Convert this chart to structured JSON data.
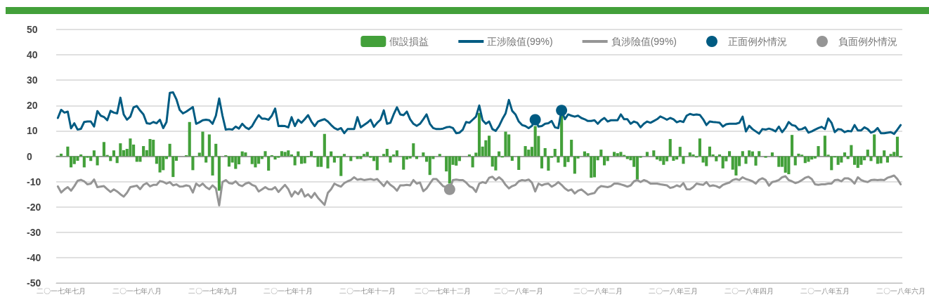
{
  "chart_data": {
    "type": "bar",
    "categories": [
      null,
      "二〇一七年七月",
      null,
      null,
      null,
      null,
      null,
      null,
      null,
      null,
      null,
      null,
      null,
      null,
      null,
      null,
      null,
      null,
      null,
      null,
      null,
      null,
      null,
      null,
      "二〇一七年八月",
      null,
      null,
      null,
      null,
      null,
      null,
      null,
      null,
      null,
      null,
      null,
      null,
      null,
      null,
      null,
      null,
      null,
      null,
      null,
      null,
      null,
      null,
      "二〇一七年九月",
      null,
      null,
      null,
      null,
      null,
      null,
      null,
      null,
      null,
      null,
      null,
      null,
      null,
      null,
      null,
      null,
      null,
      null,
      null,
      null,
      null,
      null,
      "二〇一七年十月",
      null,
      null,
      null,
      null,
      null,
      null,
      null,
      null,
      null,
      null,
      null,
      null,
      null,
      null,
      null,
      null,
      null,
      null,
      null,
      null,
      null,
      null,
      null,
      "二〇一七年十一月",
      null,
      null,
      null,
      null,
      null,
      null,
      null,
      null,
      null,
      null,
      null,
      null,
      null,
      null,
      null,
      null,
      null,
      null,
      null,
      null,
      null,
      null,
      "二〇一七年十二月",
      null,
      null,
      null,
      null,
      null,
      null,
      null,
      null,
      null,
      null,
      null,
      null,
      null,
      null,
      null,
      null,
      null,
      null,
      null,
      null,
      null,
      null,
      "二〇一八年一月",
      null,
      null,
      null,
      null,
      null,
      null,
      null,
      null,
      null,
      null,
      null,
      null,
      null,
      null,
      null,
      null,
      null,
      null,
      null,
      null,
      null,
      null,
      null,
      "二〇一八年二月",
      null,
      null,
      null,
      null,
      null,
      null,
      null,
      null,
      null,
      null,
      null,
      null,
      null,
      null,
      null,
      null,
      null,
      null,
      null,
      null,
      null,
      null,
      "二〇一八年三月",
      null,
      null,
      null,
      null,
      null,
      null,
      null,
      null,
      null,
      null,
      null,
      null,
      null,
      null,
      null,
      null,
      null,
      null,
      null,
      null,
      null,
      null,
      "二〇一八年四月",
      null,
      null,
      null,
      null,
      null,
      null,
      null,
      null,
      null,
      null,
      null,
      null,
      null,
      null,
      null,
      null,
      null,
      null,
      null,
      null,
      null,
      null,
      "二〇一八年五月",
      null,
      null,
      null,
      null,
      null,
      null,
      null,
      null,
      null,
      null,
      null,
      null,
      null,
      null,
      null,
      null,
      null,
      null,
      null,
      null,
      null,
      null,
      "二〇一八年六月"
    ],
    "series": [
      {
        "name": "假設損益",
        "color": "#43a03a",
        "values": [
          0.2,
          1.0,
          0.1,
          3.8,
          -4.4,
          -3.1,
          -1.8,
          0.7,
          -4.4,
          -0.6,
          -1.9,
          2.3,
          -3.6,
          0.1,
          5.6,
          0.5,
          -1.9,
          2.3,
          -2.7,
          5.1,
          2.4,
          2.9,
          7.0,
          4.6,
          -2.2,
          -2.2,
          4.0,
          2.4,
          6.8,
          6.5,
          -3.0,
          -6.4,
          -5.5,
          -1.1,
          4.9,
          -8.2,
          -1.8,
          0,
          null,
          0.4,
          13.5,
          -5.5,
          0.1,
          1.4,
          9.7,
          -2.5,
          8.6,
          -7.6,
          4.9,
          -13.6,
          null,
          0.4,
          -4.1,
          -2.5,
          -5.0,
          -3.2,
          1.9,
          1.5,
          0,
          -3.1,
          -4.4,
          -3.0,
          -1.1,
          2.0,
          -5.7,
          0.4,
          -1.3,
          -0.6,
          2.0,
          1.7,
          2.3,
          0.7,
          -3.6,
          1.9,
          -3.0,
          -2.8,
          -0.4,
          2.0,
          -0.5,
          -4.2,
          -4.2,
          8.8,
          -4.8,
          1.9,
          -2.5,
          -0.6,
          -7.8,
          0.9,
          0,
          -1.9,
          0,
          -1.1,
          -1.1,
          0.9,
          1.7,
          -0.6,
          -1.9,
          -5.5,
          0,
          0.9,
          2.9,
          -2.5,
          0.7,
          2.3,
          0,
          -5.3,
          -1.3,
          -0.9,
          5.1,
          -1.1,
          0,
          1.5,
          -2.2,
          -7.4,
          -1.1,
          0,
          0.9,
          0,
          -6.0,
          -10.8,
          -3.4,
          -3.7,
          -1.9,
          0,
          0,
          0.7,
          -4.4,
          1.4,
          17.1,
          3.8,
          6.3,
          8.1,
          -4.1,
          -5.6,
          1.9,
          -0.5,
          9.7,
          8.6,
          -1.8,
          0,
          -5.4,
          0,
          4.0,
          2.6,
          3.7,
          11.9,
          8.0,
          -4.8,
          3.2,
          -5.7,
          -0.6,
          2.9,
          -2.5,
          16.0,
          -4.2,
          -2.3,
          6.5,
          -6.9,
          -0.9,
          0,
          1.9,
          1.2,
          -8.5,
          -8.3,
          -1.6,
          2.6,
          -3.6,
          -1.9,
          0,
          1.7,
          1.2,
          1.7,
          0.5,
          -1.1,
          -1.6,
          -4.2,
          -9.2,
          -0.6,
          0,
          1.7,
          0,
          2.3,
          -1.3,
          -1.9,
          -3.4,
          -2.0,
          6.8,
          -1.8,
          -1.3,
          3.7,
          -3.0,
          0,
          1.5,
          0.7,
          -0.5,
          7.0,
          -2.5,
          -3.9,
          3.8,
          0.7,
          -2.0,
          0.7,
          -4.8,
          -2.0,
          2.0,
          -5.3,
          -7.6,
          -3.9,
          2.0,
          -3.0,
          2.3,
          1.9,
          -3.7,
          2.0,
          0,
          -0.6,
          0,
          1.5,
          0,
          -4.2,
          -4.2,
          -6.5,
          -7.1,
          8.4,
          -3.6,
          1.0,
          0.6,
          -2.7,
          -2.2,
          -1.3,
          -0.9,
          4.0,
          0,
          8.1,
          0.6,
          -5.5,
          -0.5,
          -3.4,
          -2.5,
          1.5,
          -1.1,
          4.4,
          -3.4,
          -4.6,
          -3.4,
          -1.6,
          2.6,
          -1.9,
          8.6,
          -3.0,
          -2.8,
          2.3,
          -2.5,
          0.9,
          1.7,
          7.7,
          -0.5
        ]
      },
      {
        "name": "正涉險值(99%)",
        "type": "line",
        "color": "#005b82",
        "values": [
          15.1,
          18.3,
          17.2,
          17.6,
          11.0,
          13.0,
          10.5,
          10.8,
          13.5,
          13.7,
          13.7,
          11.7,
          17.8,
          16.0,
          15.5,
          14.2,
          17.9,
          17.2,
          16.9,
          23.1,
          16.5,
          14.4,
          15.6,
          19.3,
          19.8,
          18.0,
          16.5,
          13.0,
          12.8,
          13.5,
          13.0,
          14.4,
          11.1,
          13.5,
          25.0,
          25.2,
          22.5,
          18.3,
          16.9,
          17.6,
          18.5,
          19.4,
          12.8,
          13.4,
          14.2,
          14.4,
          14.2,
          12.8,
          16.0,
          22.8,
          16.0,
          10.5,
          10.7,
          10.5,
          11.7,
          10.9,
          12.8,
          11.4,
          10.7,
          11.9,
          14.2,
          16.2,
          14.8,
          14.8,
          14.4,
          16.0,
          18.8,
          11.9,
          12.0,
          11.9,
          11.4,
          15.4,
          11.9,
          14.4,
          13.2,
          14.6,
          16.2,
          13.7,
          11.9,
          13.7,
          14.2,
          14.6,
          13.7,
          12.3,
          11.1,
          10.5,
          11.1,
          9.1,
          10.7,
          10.7,
          10.7,
          15.4,
          11.4,
          12.3,
          13.2,
          14.4,
          11.6,
          13.2,
          14.4,
          18.1,
          12.8,
          13.2,
          16.5,
          19.3,
          16.5,
          16.2,
          17.6,
          14.6,
          12.8,
          12.0,
          12.8,
          14.6,
          16.5,
          12.8,
          11.1,
          10.7,
          10.7,
          10.9,
          11.4,
          11.6,
          11.1,
          9.1,
          9.3,
          10.5,
          13.5,
          13.2,
          14.4,
          15.6,
          20.0,
          14.2,
          12.8,
          13.7,
          10.7,
          10.0,
          11.9,
          14.6,
          16.9,
          22.2,
          17.9,
          16.5,
          13.7,
          12.3,
          11.9,
          11.1,
          12.0,
          14.4,
          11.7,
          11.9,
          12.8,
          13.0,
          13.9,
          11.4,
          11.1,
          18.1,
          14.6,
          16.5,
          16.0,
          15.6,
          16.0,
          15.1,
          14.6,
          13.9,
          13.9,
          14.2,
          12.8,
          14.2,
          15.1,
          13.7,
          14.2,
          14.2,
          14.2,
          16.5,
          14.6,
          14.6,
          12.8,
          13.7,
          13.2,
          11.4,
          12.8,
          13.7,
          13.2,
          13.9,
          14.6,
          15.7,
          15.1,
          14.4,
          15.1,
          14.6,
          13.4,
          13.9,
          13.5,
          16.0,
          16.7,
          16.3,
          16.5,
          16.3,
          14.6,
          12.3,
          13.7,
          13.5,
          13.4,
          13.2,
          11.7,
          12.6,
          12.8,
          12.8,
          12.8,
          13.2,
          15.6,
          9.8,
          12.0,
          10.7,
          9.8,
          8.9,
          10.7,
          10.5,
          10.9,
          10.5,
          9.8,
          11.7,
          9.5,
          11.1,
          13.5,
          12.3,
          12.0,
          10.5,
          10.7,
          11.4,
          9.3,
          9.8,
          10.5,
          11.1,
          11.6,
          10.7,
          14.9,
          13.2,
          9.5,
          10.7,
          10.5,
          9.5,
          10.0,
          9.8,
          12.3,
          10.2,
          10.2,
          11.4,
          10.7,
          9.3,
          9.8,
          11.1,
          9.1,
          9.1,
          9.3,
          9.5,
          8.8,
          10.5,
          12.3
        ]
      },
      {
        "name": "負涉險值(99%)",
        "type": "line",
        "color": "#959595",
        "values": [
          -11.9,
          -14.3,
          -13.1,
          -12.2,
          -13.6,
          -11.8,
          -9.7,
          -9.3,
          -9.9,
          -11.1,
          -10.8,
          -9.2,
          -12.2,
          -12.0,
          -11.8,
          -13.0,
          -14.1,
          -13.1,
          -13.9,
          -15.0,
          -15.9,
          -14.4,
          -12.2,
          -11.9,
          -11.6,
          -13.0,
          -11.3,
          -10.6,
          -11.9,
          -11.3,
          -11.3,
          -9.8,
          -10.1,
          -10.8,
          -10.2,
          -11.5,
          -11.1,
          -12.0,
          -11.9,
          -11.5,
          -11.8,
          -14.3,
          -10.8,
          -11.8,
          -10.8,
          -12.2,
          -13.0,
          -11.5,
          -12.7,
          -19.4,
          -10.2,
          -9.4,
          -10.6,
          -10.8,
          -9.9,
          -11.3,
          -11.8,
          -10.8,
          -10.4,
          -11.3,
          -11.8,
          -13.9,
          -13.1,
          -12.2,
          -13.0,
          -13.1,
          -12.2,
          -14.1,
          -12.7,
          -11.3,
          -13.0,
          -15.9,
          -13.9,
          -15.0,
          -13.0,
          -15.9,
          -15.0,
          -16.4,
          -14.5,
          -16.4,
          -17.8,
          -19.2,
          -14.5,
          -13.0,
          -10.8,
          -11.5,
          -12.0,
          -10.6,
          -9.9,
          -9.4,
          -8.3,
          -9.3,
          -9.0,
          -9.4,
          -9.2,
          -9.0,
          -9.4,
          -9.0,
          -10.4,
          -11.8,
          -9.9,
          -11.3,
          -12.2,
          -13.6,
          -11.5,
          -11.5,
          -11.3,
          -11.5,
          -9.4,
          -10.8,
          -10.4,
          -13.8,
          -12.7,
          -10.8,
          -9.0,
          -9.0,
          -10.4,
          -11.8,
          -12.2,
          -13.1,
          -9.4,
          -9.2,
          -9.4,
          -9.4,
          -10.4,
          -11.8,
          -12.4,
          -14.1,
          -10.8,
          -10.2,
          -10.6,
          -8.5,
          -8.1,
          -9.4,
          -8.3,
          -9.4,
          -11.3,
          -12.7,
          -11.8,
          -11.3,
          -9.9,
          -9.4,
          -9.6,
          -9.2,
          -10.4,
          -13.9,
          -10.8,
          -11.5,
          -11.0,
          -10.8,
          -12.0,
          -11.3,
          -10.2,
          -11.3,
          -12.7,
          -13.6,
          -13.1,
          -14.7,
          -13.6,
          -13.1,
          -14.1,
          -15.2,
          -14.8,
          -14.5,
          -12.7,
          -11.8,
          -12.0,
          -12.2,
          -11.8,
          -10.8,
          -10.8,
          -11.1,
          -11.5,
          -12.0,
          -11.5,
          -9.9,
          -9.4,
          -10.2,
          -9.4,
          -9.9,
          -10.8,
          -10.8,
          -10.8,
          -11.1,
          -11.3,
          -11.5,
          -12.5,
          -12.2,
          -11.5,
          -12.0,
          -10.6,
          -13.0,
          -13.1,
          -12.2,
          -10.8,
          -11.1,
          -11.3,
          -10.2,
          -11.8,
          -11.5,
          -11.8,
          -12.4,
          -11.3,
          -10.8,
          -10.4,
          -9.4,
          -9.0,
          -9.4,
          -8.3,
          -9.0,
          -9.4,
          -9.9,
          -10.8,
          -9.3,
          -8.7,
          -9.4,
          -11.6,
          -10.2,
          -9.9,
          -9.4,
          -8.3,
          -7.9,
          -9.4,
          -9.9,
          -10.6,
          -10.2,
          -9.4,
          -8.5,
          -8.1,
          -9.0,
          -11.1,
          -11.3,
          -11.1,
          -11.1,
          -10.8,
          -10.8,
          -9.4,
          -9.3,
          -9.9,
          -8.7,
          -8.7,
          -9.4,
          -10.8,
          -8.3,
          -9.4,
          -9.9,
          -10.2,
          -9.4,
          -9.3,
          -9.4,
          -9.3,
          -9.4,
          -8.5,
          -8.1,
          -7.6,
          -9.0,
          -11.1
        ]
      },
      {
        "name": "正面例外情況",
        "type": "scatter",
        "marker": "circle",
        "color": "#005b82",
        "values": [
          null,
          null,
          null,
          null,
          null,
          null,
          null,
          null,
          null,
          null,
          null,
          null,
          null,
          null,
          null,
          null,
          null,
          null,
          null,
          null,
          null,
          null,
          null,
          null,
          null,
          null,
          null,
          null,
          null,
          null,
          null,
          null,
          null,
          null,
          null,
          null,
          null,
          null,
          null,
          null,
          null,
          null,
          null,
          null,
          null,
          null,
          null,
          null,
          null,
          null,
          null,
          null,
          null,
          null,
          null,
          null,
          null,
          null,
          null,
          null,
          null,
          null,
          null,
          null,
          null,
          null,
          null,
          null,
          null,
          null,
          null,
          null,
          null,
          null,
          null,
          null,
          null,
          null,
          null,
          null,
          null,
          null,
          null,
          null,
          null,
          null,
          null,
          null,
          null,
          null,
          null,
          null,
          null,
          null,
          null,
          null,
          null,
          null,
          null,
          null,
          null,
          null,
          null,
          null,
          null,
          null,
          null,
          null,
          null,
          null,
          null,
          null,
          null,
          null,
          null,
          null,
          null,
          null,
          null,
          null,
          null,
          null,
          null,
          null,
          null,
          null,
          null,
          null,
          null,
          null,
          null,
          null,
          null,
          null,
          null,
          null,
          null,
          null,
          null,
          null,
          null,
          null,
          null,
          null,
          null,
          14.4,
          null,
          null,
          null,
          null,
          null,
          null,
          null,
          18.1,
          null,
          null,
          null,
          null,
          null,
          null,
          null,
          null,
          null,
          null,
          null,
          null,
          null,
          null,
          null,
          null,
          null,
          null,
          null,
          null,
          null,
          null,
          null,
          null,
          null,
          null,
          null,
          null,
          null,
          null,
          null,
          null,
          null,
          null,
          null,
          null,
          null,
          null,
          null,
          null,
          null,
          null,
          null,
          null,
          null,
          null,
          null,
          null,
          null,
          null,
          null,
          null,
          null,
          null,
          null,
          null,
          null,
          null,
          null,
          null,
          null,
          null,
          null,
          null,
          null,
          null,
          null,
          null,
          null,
          null,
          null,
          null,
          null,
          null,
          null,
          null,
          null,
          null,
          null,
          null,
          null,
          null,
          null,
          null,
          null,
          null,
          null,
          null,
          null,
          null,
          null,
          null,
          null,
          null,
          null,
          null,
          null,
          null,
          null,
          null,
          null,
          null,
          null
        ]
      },
      {
        "name": "負面例外情況",
        "type": "scatter",
        "marker": "circle",
        "color": "#959595",
        "values": [
          null,
          null,
          null,
          null,
          null,
          null,
          null,
          null,
          null,
          null,
          null,
          null,
          null,
          null,
          null,
          null,
          null,
          null,
          null,
          null,
          null,
          null,
          null,
          null,
          null,
          null,
          null,
          null,
          null,
          null,
          null,
          null,
          null,
          null,
          null,
          null,
          null,
          null,
          null,
          null,
          null,
          null,
          null,
          null,
          null,
          null,
          null,
          null,
          null,
          null,
          null,
          null,
          null,
          null,
          null,
          null,
          null,
          null,
          null,
          null,
          null,
          null,
          null,
          null,
          null,
          null,
          null,
          null,
          null,
          null,
          null,
          null,
          null,
          null,
          null,
          null,
          null,
          null,
          null,
          null,
          null,
          null,
          null,
          null,
          null,
          null,
          null,
          null,
          null,
          null,
          null,
          null,
          null,
          null,
          null,
          null,
          null,
          null,
          null,
          null,
          null,
          null,
          null,
          null,
          null,
          null,
          null,
          null,
          null,
          null,
          null,
          null,
          null,
          null,
          null,
          null,
          null,
          null,
          null,
          -13.1,
          null,
          null,
          null,
          null,
          null,
          null,
          null,
          null,
          null,
          null,
          null,
          null,
          null,
          null,
          null,
          null,
          null,
          null,
          null,
          null,
          null,
          null,
          null,
          null,
          null,
          null,
          null,
          null,
          null,
          null,
          null,
          null,
          null,
          null,
          null,
          null,
          null,
          null,
          null,
          null,
          null,
          null,
          null,
          null,
          null,
          null,
          null,
          null,
          null,
          null,
          null,
          null,
          null,
          null,
          null,
          null,
          null,
          null,
          null,
          null,
          null,
          null,
          null,
          null,
          null,
          null,
          null,
          null,
          null,
          null,
          null,
          null,
          null,
          null,
          null,
          null,
          null,
          null,
          null,
          null,
          null,
          null,
          null,
          null,
          null,
          null,
          null,
          null,
          null,
          null,
          null,
          null,
          null,
          null,
          null,
          null,
          null,
          null,
          null,
          null,
          null,
          null,
          null,
          null,
          null,
          null,
          null,
          null,
          null,
          null,
          null,
          null,
          null,
          null,
          null,
          null,
          null,
          null,
          null,
          null,
          null,
          null,
          null,
          null,
          null,
          null,
          null,
          null,
          null,
          null,
          null,
          null,
          null,
          null,
          null,
          null,
          null
        ]
      }
    ],
    "ylim": [
      -50,
      50
    ],
    "yticks": [
      -50,
      -40,
      -30,
      -20,
      -10,
      0,
      10,
      20,
      30,
      40,
      50
    ],
    "grid": "y",
    "legend": "top right"
  }
}
